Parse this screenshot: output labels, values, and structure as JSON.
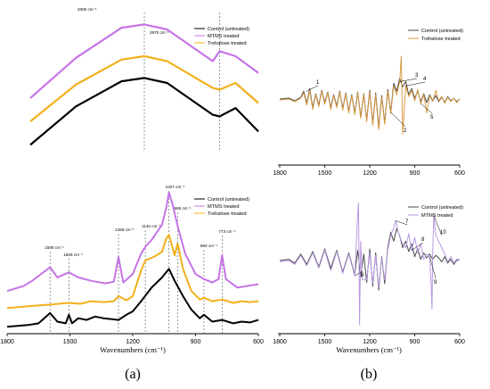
{
  "colors": {
    "black": "#000000",
    "purple": "#c673e6",
    "orange": "#f2b01b",
    "gray": "#4a4a4a",
    "lightpurple": "#b898e0",
    "tan": "#d99a45"
  },
  "panel_labels": {
    "a": "(a)",
    "b": "(b)"
  },
  "chart_data": [
    {
      "type": "line",
      "panel": "a-top",
      "series": [
        {
          "name": "Control (untreated)",
          "color": "#000000",
          "x": [
            3800,
            3600,
            3400,
            3300,
            3200,
            3000,
            2970,
            2900,
            2800
          ],
          "y": [
            0.06,
            0.52,
            0.82,
            0.86,
            0.8,
            0.42,
            0.4,
            0.5,
            0.22
          ]
        },
        {
          "name": "MTMS treated",
          "color": "#c673e6",
          "x": [
            3800,
            3600,
            3400,
            3300,
            3200,
            3000,
            2970,
            2900,
            2800
          ],
          "y": [
            0.62,
            1.1,
            1.46,
            1.5,
            1.44,
            1.06,
            1.18,
            1.12,
            0.92
          ]
        },
        {
          "name": "Trehalose treated",
          "color": "#f2b01b",
          "x": [
            3800,
            3600,
            3400,
            3300,
            3200,
            3000,
            2970,
            2900,
            2800
          ],
          "y": [
            0.34,
            0.78,
            1.08,
            1.12,
            1.06,
            0.74,
            0.72,
            0.8,
            0.56
          ]
        }
      ],
      "annotations": [
        "3300 cm⁻¹",
        "2970 cm⁻¹"
      ],
      "legend": [
        "Control (untreated)",
        "MTMS treated",
        "Trehalose treated"
      ]
    },
    {
      "type": "line",
      "panel": "a-bottom",
      "xlabel": "Wavenumbers (cm⁻¹)",
      "xlim": [
        1800,
        600
      ],
      "xticks": [
        "1800",
        "1500",
        "1200",
        "900",
        "600"
      ],
      "annotations": [
        "1595 cm⁻¹",
        "1505 cm⁻¹",
        "1268 cm⁻¹",
        "1140 cm⁻¹",
        "1027 cm⁻¹",
        "985 cm⁻¹",
        "860 cm⁻¹",
        "773 cm⁻¹"
      ],
      "legend": [
        "Control (untreated)",
        "MTMS treated",
        "Trehalose treated"
      ],
      "series": [
        {
          "name": "Control (untreated)",
          "color": "#000000",
          "x": [
            1800,
            1700,
            1650,
            1595,
            1560,
            1520,
            1505,
            1490,
            1460,
            1420,
            1380,
            1340,
            1268,
            1230,
            1200,
            1160,
            1110,
            1060,
            1027,
            1000,
            960,
            920,
            880,
            860,
            820,
            773,
            720,
            680,
            640,
            600
          ],
          "y": [
            0.04,
            0.06,
            0.08,
            0.2,
            0.1,
            0.08,
            0.18,
            0.08,
            0.14,
            0.12,
            0.16,
            0.14,
            0.12,
            0.18,
            0.22,
            0.34,
            0.5,
            0.62,
            0.72,
            0.58,
            0.4,
            0.24,
            0.14,
            0.18,
            0.1,
            0.12,
            0.08,
            0.1,
            0.09,
            0.12
          ]
        },
        {
          "name": "MTMS treated",
          "color": "#c673e6",
          "x": [
            1800,
            1720,
            1680,
            1595,
            1560,
            1505,
            1460,
            1400,
            1330,
            1290,
            1268,
            1245,
            1200,
            1160,
            1140,
            1110,
            1060,
            1040,
            1027,
            1010,
            985,
            950,
            900,
            860,
            820,
            790,
            773,
            755,
            700,
            650,
            600
          ],
          "y": [
            0.46,
            0.52,
            0.58,
            0.74,
            0.62,
            0.68,
            0.62,
            0.58,
            0.55,
            0.57,
            0.86,
            0.56,
            0.66,
            0.9,
            0.98,
            1.06,
            1.24,
            1.44,
            1.62,
            1.48,
            1.22,
            0.9,
            0.66,
            0.6,
            0.56,
            0.6,
            0.88,
            0.6,
            0.5,
            0.52,
            0.54
          ]
        },
        {
          "name": "Trehalose treated",
          "color": "#f2b01b",
          "x": [
            1800,
            1700,
            1595,
            1505,
            1450,
            1400,
            1340,
            1290,
            1268,
            1230,
            1200,
            1160,
            1140,
            1100,
            1060,
            1040,
            1027,
            1000,
            985,
            960,
            920,
            880,
            860,
            820,
            773,
            720,
            680,
            640,
            600
          ],
          "y": [
            0.26,
            0.28,
            0.3,
            0.32,
            0.31,
            0.34,
            0.33,
            0.34,
            0.4,
            0.35,
            0.4,
            0.7,
            0.82,
            0.86,
            0.92,
            1.08,
            1.12,
            0.88,
            1.02,
            0.72,
            0.46,
            0.36,
            0.38,
            0.34,
            0.36,
            0.32,
            0.34,
            0.33,
            0.34
          ]
        }
      ]
    },
    {
      "type": "line",
      "panel": "b-top",
      "xlim": [
        1800,
        600
      ],
      "xticks": [
        "1800",
        "1500",
        "1200",
        "900",
        "600"
      ],
      "legend": [
        "Control (untreated)",
        "Trehalose treated"
      ],
      "peak_labels": [
        "1",
        "2",
        "3",
        "4",
        "5"
      ],
      "series": [
        {
          "name": "Control (untreated)",
          "color": "#4a4a4a",
          "x": [
            1800,
            1740,
            1700,
            1660,
            1640,
            1620,
            1600,
            1580,
            1560,
            1540,
            1520,
            1500,
            1480,
            1460,
            1440,
            1420,
            1400,
            1380,
            1360,
            1340,
            1320,
            1300,
            1280,
            1260,
            1240,
            1220,
            1200,
            1180,
            1160,
            1140,
            1120,
            1100,
            1080,
            1060,
            1040,
            1020,
            1000,
            980,
            960,
            940,
            920,
            900,
            880,
            860,
            840,
            820,
            800,
            780,
            760,
            740,
            720,
            700,
            680,
            660,
            640,
            620,
            600
          ],
          "y": [
            0.0,
            0.02,
            -0.04,
            0.04,
            0.18,
            -0.1,
            0.24,
            -0.2,
            0.12,
            -0.14,
            0.2,
            -0.08,
            0.16,
            -0.2,
            0.1,
            -0.16,
            0.18,
            -0.22,
            0.14,
            -0.28,
            0.1,
            -0.32,
            0.16,
            -0.4,
            0.12,
            -0.48,
            0.2,
            -0.56,
            0.14,
            -0.66,
            0.08,
            -0.54,
            0.22,
            -0.3,
            0.36,
            0.18,
            0.48,
            0.28,
            0.4,
            0.1,
            0.24,
            0.02,
            0.18,
            -0.06,
            0.12,
            -0.08,
            0.1,
            -0.04,
            0.08,
            -0.06,
            0.04,
            -0.08,
            0.06,
            -0.04,
            0.02,
            -0.06,
            0.0
          ]
        },
        {
          "name": "Trehalose treated",
          "color": "#d99a45",
          "x": [
            1800,
            1740,
            1700,
            1660,
            1640,
            1620,
            1600,
            1580,
            1560,
            1540,
            1520,
            1500,
            1480,
            1460,
            1440,
            1420,
            1400,
            1380,
            1360,
            1340,
            1320,
            1300,
            1280,
            1260,
            1240,
            1220,
            1200,
            1180,
            1160,
            1140,
            1120,
            1100,
            1080,
            1060,
            1040,
            1020,
            1000,
            990,
            980,
            960,
            940,
            920,
            900,
            880,
            860,
            840,
            820,
            800,
            780,
            760,
            740,
            720,
            700,
            680,
            660,
            640,
            620,
            600
          ],
          "y": [
            -0.02,
            0.0,
            -0.06,
            0.02,
            0.14,
            -0.14,
            0.2,
            -0.24,
            0.1,
            -0.18,
            0.18,
            -0.12,
            0.14,
            -0.24,
            0.08,
            -0.2,
            0.16,
            -0.26,
            0.12,
            -0.32,
            0.08,
            -0.36,
            0.14,
            -0.44,
            0.1,
            -0.52,
            0.16,
            -0.6,
            0.1,
            -0.7,
            0.04,
            -0.58,
            0.18,
            -0.34,
            0.3,
            0.1,
            0.4,
            0.98,
            -0.8,
            0.3,
            0.06,
            0.2,
            -0.04,
            0.22,
            -0.1,
            0.1,
            -0.32,
            0.08,
            -0.06,
            0.2,
            -0.04,
            0.06,
            -0.1,
            0.04,
            -0.06,
            0.02,
            -0.08,
            0.0
          ]
        }
      ]
    },
    {
      "type": "line",
      "panel": "b-bottom",
      "xlabel": "Wavenumbers (cm⁻¹)",
      "xlim": [
        1800,
        600
      ],
      "xticks": [
        "1800",
        "1500",
        "1200",
        "900",
        "600"
      ],
      "legend": [
        "Control (untreated)",
        "MTMS treated"
      ],
      "peak_labels": [
        "6",
        "7",
        "8",
        "9",
        "10"
      ],
      "series": [
        {
          "name": "Control (untreated)",
          "color": "#4a4a4a",
          "x": [
            1800,
            1740,
            1700,
            1660,
            1620,
            1580,
            1540,
            1500,
            1460,
            1420,
            1380,
            1340,
            1300,
            1280,
            1260,
            1240,
            1220,
            1200,
            1180,
            1160,
            1140,
            1120,
            1100,
            1080,
            1060,
            1040,
            1020,
            1000,
            980,
            960,
            940,
            920,
            900,
            880,
            860,
            840,
            820,
            800,
            780,
            760,
            740,
            720,
            700,
            680,
            660,
            640,
            620,
            600
          ],
          "y": [
            0.0,
            0.02,
            -0.04,
            0.1,
            -0.06,
            0.14,
            -0.1,
            0.18,
            -0.12,
            0.16,
            -0.18,
            0.12,
            -0.22,
            0.16,
            -0.26,
            0.1,
            -0.34,
            0.18,
            -0.4,
            0.12,
            -0.46,
            0.06,
            -0.36,
            0.2,
            0.44,
            0.3,
            0.5,
            0.38,
            0.2,
            0.3,
            0.14,
            0.26,
            0.06,
            0.18,
            0.02,
            0.12,
            0.04,
            0.1,
            0.02,
            0.08,
            0.04,
            -0.02,
            0.06,
            -0.04,
            0.02,
            -0.06,
            0.0,
            0.02
          ]
        },
        {
          "name": "MTMS treated",
          "color": "#b898e0",
          "x": [
            1800,
            1740,
            1700,
            1660,
            1620,
            1580,
            1540,
            1500,
            1460,
            1420,
            1380,
            1340,
            1300,
            1280,
            1275,
            1268,
            1260,
            1250,
            1220,
            1200,
            1180,
            1160,
            1140,
            1120,
            1100,
            1080,
            1060,
            1040,
            1027,
            1010,
            985,
            960,
            940,
            920,
            900,
            880,
            860,
            840,
            820,
            800,
            790,
            785,
            780,
            773,
            760,
            740,
            720,
            700,
            680,
            660,
            640,
            620,
            600
          ],
          "y": [
            -0.02,
            0.0,
            -0.06,
            0.08,
            -0.08,
            0.12,
            -0.12,
            0.16,
            -0.16,
            0.14,
            -0.2,
            0.1,
            -0.24,
            0.72,
            0.9,
            -1.0,
            0.3,
            -0.3,
            -0.3,
            0.12,
            -0.36,
            0.08,
            -0.42,
            0.04,
            -0.3,
            0.16,
            0.4,
            0.5,
            0.62,
            0.44,
            0.28,
            0.2,
            0.42,
            0.16,
            0.36,
            0.12,
            0.26,
            0.02,
            0.1,
            0.06,
            -0.4,
            -0.76,
            0.1,
            0.7,
            0.4,
            0.3,
            0.2,
            0.1,
            -0.02,
            0.06,
            -0.04,
            0.02,
            0.02
          ]
        }
      ]
    }
  ]
}
